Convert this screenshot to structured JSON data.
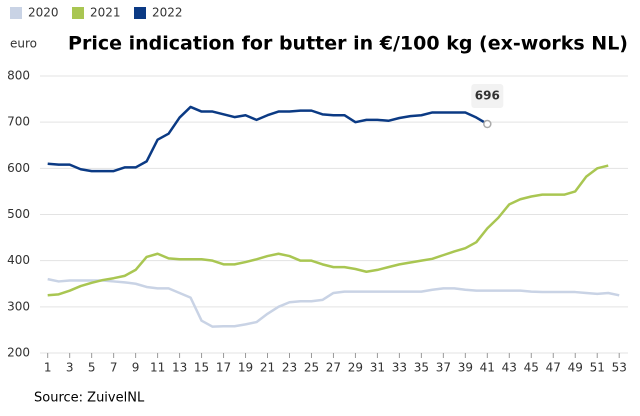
{
  "chart_data": {
    "type": "line",
    "title": "Price indication for butter in €/100 kg (ex-works NL)",
    "y_label": "euro",
    "source": "Source: ZuivelNL",
    "x": [
      1,
      2,
      3,
      4,
      5,
      6,
      7,
      8,
      9,
      10,
      11,
      12,
      13,
      14,
      15,
      16,
      17,
      18,
      19,
      20,
      21,
      22,
      23,
      24,
      25,
      26,
      27,
      28,
      29,
      30,
      31,
      32,
      33,
      34,
      35,
      36,
      37,
      38,
      39,
      40,
      41,
      42,
      43,
      44,
      45,
      46,
      47,
      48,
      49,
      50,
      51,
      52,
      53
    ],
    "xlim": [
      0.3,
      53.8
    ],
    "xticks": [
      1,
      3,
      5,
      7,
      9,
      11,
      13,
      15,
      17,
      19,
      21,
      23,
      25,
      27,
      29,
      31,
      33,
      35,
      37,
      39,
      41,
      43,
      45,
      47,
      49,
      51,
      53
    ],
    "ylim": [
      200,
      800
    ],
    "yticks": [
      200,
      300,
      400,
      500,
      600,
      700,
      800
    ],
    "grid": true,
    "legend": "top-left",
    "series": [
      {
        "name": "2020",
        "color": "#c9d3e5",
        "values": [
          360,
          355,
          357,
          357,
          357,
          357,
          355,
          353,
          350,
          343,
          340,
          340,
          330,
          320,
          270,
          257,
          258,
          258,
          262,
          267,
          285,
          300,
          310,
          312,
          312,
          315,
          330,
          333,
          333,
          333,
          333,
          333,
          333,
          333,
          333,
          337,
          340,
          340,
          337,
          335,
          335,
          335,
          335,
          335,
          333,
          332,
          332,
          332,
          332,
          330,
          328,
          330,
          325
        ]
      },
      {
        "name": "2021",
        "color": "#a9c652",
        "values": [
          325,
          327,
          335,
          345,
          352,
          358,
          362,
          367,
          380,
          408,
          415,
          405,
          403,
          403,
          403,
          400,
          392,
          392,
          397,
          403,
          410,
          415,
          410,
          400,
          400,
          392,
          386,
          386,
          382,
          376,
          380,
          386,
          392,
          396,
          400,
          404,
          412,
          420,
          427,
          440,
          470,
          493,
          522,
          533,
          539,
          543,
          543,
          543,
          550,
          582,
          600,
          606,
          null
        ]
      },
      {
        "name": "2022",
        "color": "#0b3a84",
        "values": [
          610,
          608,
          608,
          598,
          594,
          594,
          594,
          602,
          602,
          615,
          662,
          675,
          710,
          733,
          723,
          723,
          717,
          711,
          715,
          705,
          715,
          723,
          723,
          725,
          725,
          717,
          715,
          715,
          700,
          705,
          705,
          703,
          709,
          713,
          715,
          721,
          721,
          721,
          721,
          710,
          696,
          null,
          null,
          null,
          null,
          null,
          null,
          null,
          null,
          null,
          null,
          null,
          null
        ]
      }
    ]
  }
}
